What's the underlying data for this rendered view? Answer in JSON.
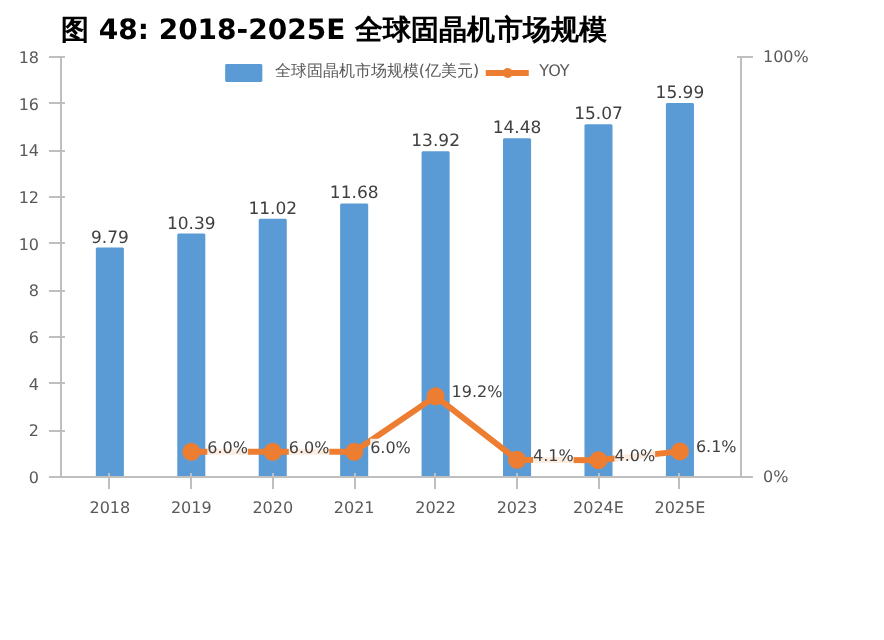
{
  "chart_data": {
    "type": "bar",
    "title": "图  48:  2018-2025E 全球固晶机市场规模",
    "categories": [
      "2018",
      "2019",
      "2020",
      "2021",
      "2022",
      "2023",
      "2024E",
      "2025E"
    ],
    "series": [
      {
        "name": "全球固晶机市场规模(亿美元)",
        "color": "#5b9bd5",
        "values": [
          9.79,
          10.39,
          11.02,
          11.68,
          13.92,
          14.48,
          15.07,
          15.99
        ],
        "value_labels": [
          "9.79",
          "10.39",
          "11.02",
          "11.68",
          "13.92",
          "14.48",
          "15.07",
          "15.99"
        ]
      },
      {
        "name": "YOY",
        "type": "line",
        "axis": "y2",
        "color": "#ed7d31",
        "values": [
          null,
          6.0,
          6.0,
          6.0,
          19.2,
          4.1,
          4.0,
          6.1
        ],
        "value_labels": [
          null,
          "6.0%",
          "6.0%",
          "6.0%",
          "19.2%",
          "4.1%",
          "4.0%",
          "6.1%"
        ]
      }
    ],
    "ylim": [
      0,
      18
    ],
    "yticks": [
      0,
      2,
      4,
      6,
      8,
      10,
      12,
      14,
      16,
      18
    ],
    "y2lim": [
      0,
      100
    ],
    "y2ticks": [
      {
        "value": 0,
        "label": "0%"
      },
      {
        "value": 100,
        "label": "100%"
      }
    ],
    "legend": "top",
    "grid": false,
    "marker": "circle"
  }
}
